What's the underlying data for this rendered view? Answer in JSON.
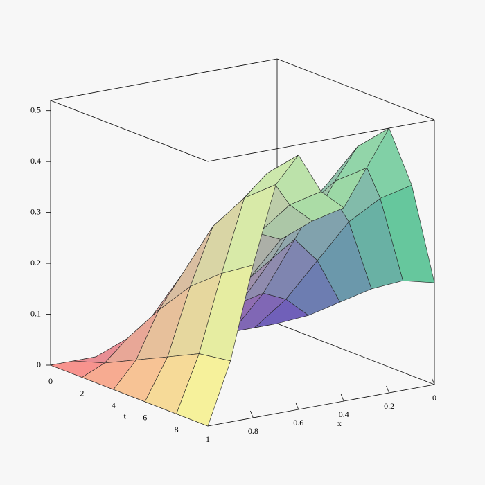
{
  "chart_data": {
    "type": "surface",
    "t_label": "t",
    "x_label": "x",
    "t": [
      0,
      2,
      4,
      6,
      8,
      10
    ],
    "x": [
      0,
      0.1,
      0.2,
      0.3,
      0.4,
      0.5,
      0.6,
      0.7,
      0.8,
      0.9,
      1
    ],
    "z": [
      [
        0,
        0,
        0,
        0,
        0,
        0,
        0,
        0,
        0,
        0,
        0
      ],
      [
        0.04,
        0.08,
        0.1,
        0.09,
        0.08,
        0.08,
        0.1,
        0.09,
        0.06,
        0.02,
        0
      ],
      [
        0.09,
        0.18,
        0.23,
        0.2,
        0.17,
        0.19,
        0.23,
        0.2,
        0.14,
        0.05,
        0
      ],
      [
        0.14,
        0.28,
        0.36,
        0.32,
        0.27,
        0.29,
        0.35,
        0.32,
        0.21,
        0.08,
        0
      ],
      [
        0.18,
        0.35,
        0.46,
        0.4,
        0.33,
        0.37,
        0.44,
        0.4,
        0.26,
        0.11,
        0
      ],
      [
        0.2,
        0.4,
        0.52,
        0.45,
        0.38,
        0.42,
        0.5,
        0.45,
        0.3,
        0.12,
        0
      ]
    ],
    "tlim": [
      0,
      10
    ],
    "xlim": [
      0,
      1
    ],
    "zlim": [
      0,
      0.52
    ],
    "tticks": [
      0,
      2,
      4,
      6,
      8
    ],
    "xticks": [
      1,
      0.8,
      0.6,
      0.4,
      0.2,
      0
    ],
    "zticks": [
      0,
      0.1,
      0.2,
      0.3,
      0.4,
      0.5
    ],
    "corner_colors": {
      "t0_x0": "#6a4fc0",
      "t0_x1": "#ff8a8a",
      "t1_x0": "#40c888",
      "t1_x1": "#ffff9a"
    }
  }
}
